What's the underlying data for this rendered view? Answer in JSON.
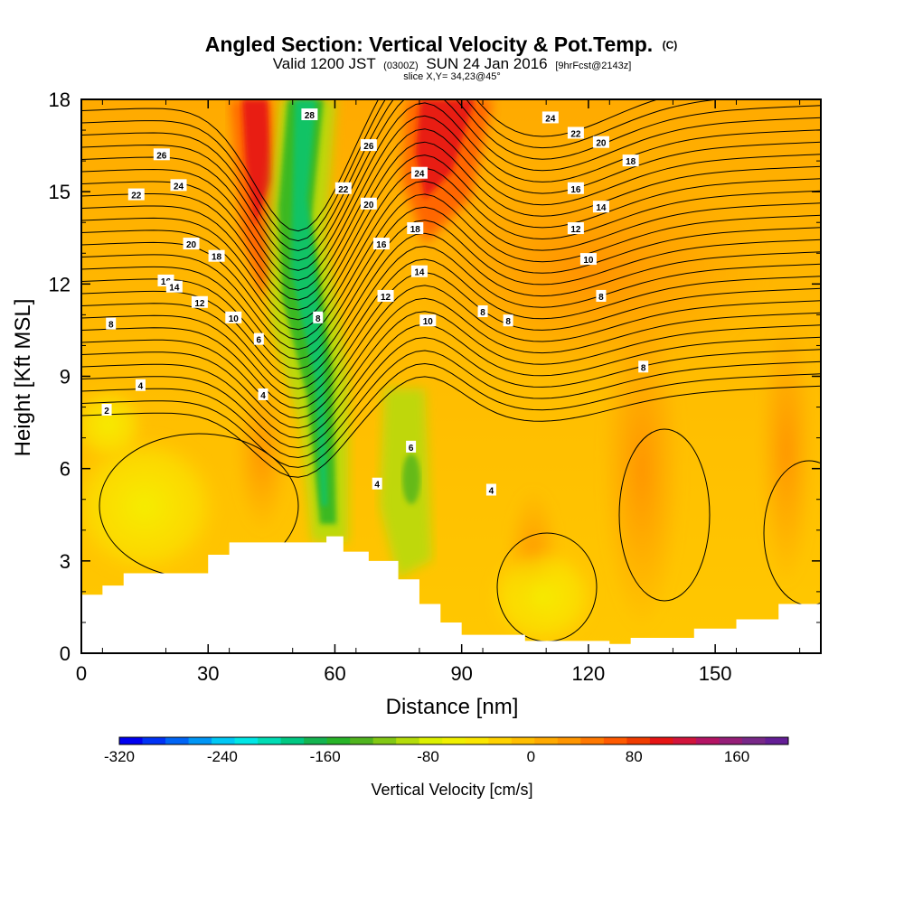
{
  "title": {
    "main": "Angled Section: Vertical Velocity & Pot.Temp.",
    "unit": "(C)",
    "valid_pre": "Valid 1200 JST",
    "valid_utc": "(0300Z)",
    "valid_date": "SUN 24 Jan 2016",
    "fcst": "[9hrFcst@2143z]",
    "slice": "slice X,Y= 34,23@45°"
  },
  "chart_data": {
    "type": "heatmap",
    "xlabel": "Distance [nm]",
    "ylabel": "Height [Kft MSL]",
    "xlim": [
      0,
      175
    ],
    "ylim": [
      0,
      18
    ],
    "xticks": [
      0,
      30,
      60,
      90,
      120,
      150
    ],
    "yticks": [
      0,
      3,
      6,
      9,
      12,
      15,
      18
    ],
    "colorbar": {
      "label": "Vertical Velocity [cm/s]",
      "min": -320,
      "max": 200,
      "step": 20,
      "ticks": [
        -320,
        -240,
        -160,
        -80,
        0,
        80,
        160
      ],
      "colors": [
        "#0000f0",
        "#0032f5",
        "#0064f5",
        "#0096f5",
        "#00c8f5",
        "#00e6e6",
        "#00dcb4",
        "#00c882",
        "#14b450",
        "#28b428",
        "#50b41e",
        "#82c814",
        "#b4dc0a",
        "#dcf000",
        "#f0f000",
        "#fae600",
        "#ffd200",
        "#ffbe00",
        "#ffaa00",
        "#ff9600",
        "#ff7800",
        "#ff5a00",
        "#f03c00",
        "#e61414",
        "#d2143c",
        "#b41464",
        "#961e78",
        "#782888",
        "#641e96"
      ]
    },
    "terrain": [
      [
        0,
        1.9
      ],
      [
        5,
        2.2
      ],
      [
        10,
        2.6
      ],
      [
        25,
        2.6
      ],
      [
        30,
        3.2
      ],
      [
        35,
        3.6
      ],
      [
        52,
        3.6
      ],
      [
        58,
        3.8
      ],
      [
        62,
        3.3
      ],
      [
        68,
        3.0
      ],
      [
        75,
        2.4
      ],
      [
        80,
        1.6
      ],
      [
        85,
        1.0
      ],
      [
        90,
        0.6
      ],
      [
        105,
        0.4
      ],
      [
        125,
        0.3
      ],
      [
        130,
        0.5
      ],
      [
        145,
        0.8
      ],
      [
        155,
        1.1
      ],
      [
        165,
        1.6
      ],
      [
        175,
        1.6
      ]
    ],
    "contour_labels": [
      {
        "text": "28",
        "x": 54,
        "y": 17.5
      },
      {
        "text": "26",
        "x": 19,
        "y": 16.2
      },
      {
        "text": "24",
        "x": 23,
        "y": 15.2
      },
      {
        "text": "22",
        "x": 13,
        "y": 14.9
      },
      {
        "text": "20",
        "x": 26,
        "y": 13.3
      },
      {
        "text": "18",
        "x": 32,
        "y": 12.9
      },
      {
        "text": "16",
        "x": 20,
        "y": 12.1
      },
      {
        "text": "14",
        "x": 22,
        "y": 11.9
      },
      {
        "text": "12",
        "x": 28,
        "y": 11.4
      },
      {
        "text": "10",
        "x": 36,
        "y": 10.9
      },
      {
        "text": "8",
        "x": 7,
        "y": 10.7
      },
      {
        "text": "6",
        "x": 42,
        "y": 10.2
      },
      {
        "text": "4",
        "x": 14,
        "y": 8.7
      },
      {
        "text": "4",
        "x": 43,
        "y": 8.4
      },
      {
        "text": "2",
        "x": 6,
        "y": 7.9
      },
      {
        "text": "26",
        "x": 68,
        "y": 16.5
      },
      {
        "text": "24",
        "x": 80,
        "y": 15.6
      },
      {
        "text": "22",
        "x": 62,
        "y": 15.1
      },
      {
        "text": "20",
        "x": 68,
        "y": 14.6
      },
      {
        "text": "18",
        "x": 79,
        "y": 13.8
      },
      {
        "text": "16",
        "x": 71,
        "y": 13.3
      },
      {
        "text": "14",
        "x": 80,
        "y": 12.4
      },
      {
        "text": "12",
        "x": 72,
        "y": 11.6
      },
      {
        "text": "10",
        "x": 82,
        "y": 10.8
      },
      {
        "text": "8",
        "x": 56,
        "y": 10.9
      },
      {
        "text": "8",
        "x": 95,
        "y": 11.1
      },
      {
        "text": "8",
        "x": 101,
        "y": 10.8
      },
      {
        "text": "6",
        "x": 78,
        "y": 6.7
      },
      {
        "text": "4",
        "x": 70,
        "y": 5.5
      },
      {
        "text": "4",
        "x": 97,
        "y": 5.3
      },
      {
        "text": "24",
        "x": 111,
        "y": 17.4
      },
      {
        "text": "22",
        "x": 117,
        "y": 16.9
      },
      {
        "text": "20",
        "x": 123,
        "y": 16.6
      },
      {
        "text": "18",
        "x": 130,
        "y": 16.0
      },
      {
        "text": "16",
        "x": 117,
        "y": 15.1
      },
      {
        "text": "14",
        "x": 123,
        "y": 14.5
      },
      {
        "text": "12",
        "x": 117,
        "y": 13.8
      },
      {
        "text": "10",
        "x": 120,
        "y": 12.8
      },
      {
        "text": "8",
        "x": 123,
        "y": 11.6
      },
      {
        "text": "8",
        "x": 133,
        "y": 9.3
      }
    ]
  }
}
